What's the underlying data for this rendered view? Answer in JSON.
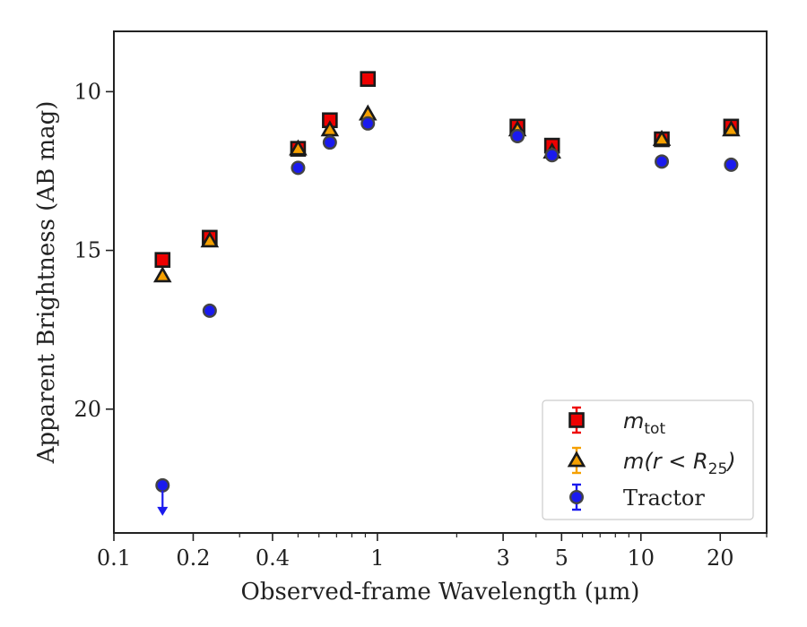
{
  "chart_data": {
    "type": "scatter",
    "xlabel": "Observed-frame Wavelength (μm)",
    "ylabel": "Apparent Brightness (AB mag)",
    "xscale": "log",
    "xlim": [
      0.1,
      30
    ],
    "ylim": [
      8.1,
      23.9
    ],
    "y_inverted": true,
    "xticks": [
      0.1,
      0.2,
      0.4,
      1,
      3,
      5,
      10,
      20
    ],
    "xtick_labels": [
      "0.1",
      "0.2",
      "0.4",
      "1",
      "3",
      "5",
      "10",
      "20"
    ],
    "yticks": [
      10,
      15,
      20
    ],
    "ytick_labels": [
      "10",
      "15",
      "20"
    ],
    "legend_position": "lower-right",
    "series": [
      {
        "name_main": "m",
        "name_sub": "tot",
        "marker": "square",
        "color": "#ee0000",
        "x": [
          0.153,
          0.231,
          0.5,
          0.66,
          0.92,
          3.4,
          4.6,
          12.0,
          22.0
        ],
        "y": [
          15.3,
          14.6,
          11.8,
          10.9,
          9.6,
          11.1,
          11.7,
          11.5,
          11.1
        ]
      },
      {
        "name_main": "m(r < R",
        "name_sub": "25",
        "name_end": ")",
        "marker": "triangle",
        "color": "#f5a000",
        "x": [
          0.153,
          0.231,
          0.5,
          0.66,
          0.92,
          3.4,
          4.6,
          12.0,
          22.0
        ],
        "y": [
          15.8,
          14.7,
          11.8,
          11.2,
          10.7,
          11.2,
          11.9,
          11.5,
          11.2
        ]
      },
      {
        "name": "Tractor",
        "marker": "circle",
        "color": "#1a1aee",
        "x": [
          0.153,
          0.231,
          0.5,
          0.66,
          0.92,
          3.4,
          4.6,
          12.0,
          22.0
        ],
        "y": [
          22.4,
          16.9,
          12.4,
          11.6,
          11.0,
          11.4,
          12.0,
          12.2,
          12.3
        ],
        "upper_limit_x": [
          0.153
        ]
      }
    ]
  }
}
